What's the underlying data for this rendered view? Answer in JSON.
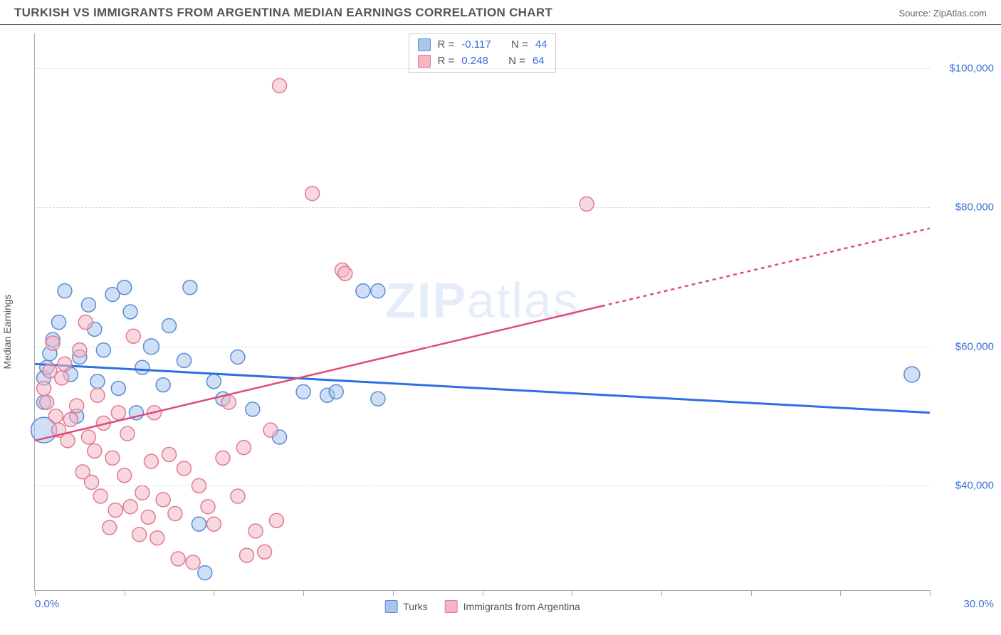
{
  "header": {
    "title": "TURKISH VS IMMIGRANTS FROM ARGENTINA MEDIAN EARNINGS CORRELATION CHART",
    "source": "Source: ZipAtlas.com"
  },
  "chart": {
    "type": "scatter",
    "ylabel": "Median Earnings",
    "watermark": {
      "bold": "ZIP",
      "thin": "atlas"
    },
    "xlim": [
      0,
      30
    ],
    "ylim": [
      25000,
      105000
    ],
    "x_tick_positions": [
      0,
      3,
      6,
      9,
      12,
      15,
      18,
      21,
      24,
      27,
      30
    ],
    "x_min_label": "0.0%",
    "x_max_label": "30.0%",
    "y_gridlines": [
      40000,
      60000,
      80000,
      100000
    ],
    "y_tick_labels": [
      "$40,000",
      "$60,000",
      "$80,000",
      "$100,000"
    ],
    "grid_color": "#dddddd",
    "axis_color": "#aaaaaa",
    "label_color": "#3b6fd8",
    "background_color": "#ffffff",
    "series": [
      {
        "name": "Turks",
        "fill": "#a8c5ec",
        "stroke": "#5a8bd6",
        "fill_opacity": 0.55,
        "marker_r": 10,
        "trend": {
          "y_at_xmin": 57500,
          "y_at_xmax": 50500,
          "solid_until_x": 30,
          "color": "#2f6fe0",
          "width": 3
        },
        "stats": {
          "R": "-0.117",
          "N": "44"
        },
        "points": [
          [
            0.3,
            48000,
            18
          ],
          [
            0.3,
            52000,
            10
          ],
          [
            0.3,
            55500,
            10
          ],
          [
            0.4,
            57000,
            10
          ],
          [
            0.5,
            59000,
            10
          ],
          [
            0.6,
            61000,
            10
          ],
          [
            0.8,
            63500,
            10
          ],
          [
            1.0,
            68000,
            10
          ],
          [
            1.2,
            56000,
            10
          ],
          [
            1.4,
            50000,
            10
          ],
          [
            1.5,
            58500,
            10
          ],
          [
            1.8,
            66000,
            10
          ],
          [
            2.0,
            62500,
            10
          ],
          [
            2.1,
            55000,
            10
          ],
          [
            2.3,
            59500,
            10
          ],
          [
            2.6,
            67500,
            10
          ],
          [
            2.8,
            54000,
            10
          ],
          [
            3.0,
            68500,
            10
          ],
          [
            3.2,
            65000,
            10
          ],
          [
            3.4,
            50500,
            10
          ],
          [
            3.6,
            57000,
            10
          ],
          [
            3.9,
            60000,
            11
          ],
          [
            4.3,
            54500,
            10
          ],
          [
            4.5,
            63000,
            10
          ],
          [
            5.0,
            58000,
            10
          ],
          [
            5.2,
            68500,
            10
          ],
          [
            5.5,
            34500,
            10
          ],
          [
            5.7,
            27500,
            10
          ],
          [
            6.0,
            55000,
            10
          ],
          [
            6.3,
            52500,
            10
          ],
          [
            6.8,
            58500,
            10
          ],
          [
            7.3,
            51000,
            10
          ],
          [
            8.2,
            47000,
            10
          ],
          [
            9.0,
            53500,
            10
          ],
          [
            9.8,
            53000,
            10
          ],
          [
            10.1,
            53500,
            10
          ],
          [
            11.5,
            52500,
            10
          ],
          [
            11.0,
            68000,
            10
          ],
          [
            11.5,
            68000,
            10
          ],
          [
            29.4,
            56000,
            11
          ]
        ]
      },
      {
        "name": "Immigrants from Argentina",
        "fill": "#f4b6c2",
        "stroke": "#e17a94",
        "fill_opacity": 0.55,
        "marker_r": 10,
        "trend": {
          "y_at_xmin": 46500,
          "y_at_xmax": 77000,
          "solid_until_x": 19,
          "color": "#e04a7a",
          "width": 2.5
        },
        "stats": {
          "R": "0.248",
          "N": "64"
        },
        "points": [
          [
            0.3,
            54000,
            10
          ],
          [
            0.4,
            52000,
            10
          ],
          [
            0.5,
            56500,
            10
          ],
          [
            0.6,
            60500,
            10
          ],
          [
            0.7,
            50000,
            10
          ],
          [
            0.8,
            48000,
            10
          ],
          [
            0.9,
            55500,
            10
          ],
          [
            1.0,
            57500,
            10
          ],
          [
            1.1,
            46500,
            10
          ],
          [
            1.2,
            49500,
            10
          ],
          [
            1.4,
            51500,
            10
          ],
          [
            1.5,
            59500,
            10
          ],
          [
            1.6,
            42000,
            10
          ],
          [
            1.7,
            63500,
            10
          ],
          [
            1.8,
            47000,
            10
          ],
          [
            1.9,
            40500,
            10
          ],
          [
            2.0,
            45000,
            10
          ],
          [
            2.1,
            53000,
            10
          ],
          [
            2.2,
            38500,
            10
          ],
          [
            2.3,
            49000,
            10
          ],
          [
            2.5,
            34000,
            10
          ],
          [
            2.6,
            44000,
            10
          ],
          [
            2.7,
            36500,
            10
          ],
          [
            2.8,
            50500,
            10
          ],
          [
            3.0,
            41500,
            10
          ],
          [
            3.1,
            47500,
            10
          ],
          [
            3.2,
            37000,
            10
          ],
          [
            3.3,
            61500,
            10
          ],
          [
            3.5,
            33000,
            10
          ],
          [
            3.6,
            39000,
            10
          ],
          [
            3.8,
            35500,
            10
          ],
          [
            3.9,
            43500,
            10
          ],
          [
            4.0,
            50500,
            10
          ],
          [
            4.1,
            32500,
            10
          ],
          [
            4.3,
            38000,
            10
          ],
          [
            4.5,
            44500,
            10
          ],
          [
            4.7,
            36000,
            10
          ],
          [
            4.8,
            29500,
            10
          ],
          [
            5.0,
            42500,
            10
          ],
          [
            5.3,
            29000,
            10
          ],
          [
            5.5,
            40000,
            10
          ],
          [
            5.8,
            37000,
            10
          ],
          [
            6.0,
            34500,
            10
          ],
          [
            6.3,
            44000,
            10
          ],
          [
            6.5,
            52000,
            10
          ],
          [
            6.8,
            38500,
            10
          ],
          [
            7.0,
            45500,
            10
          ],
          [
            7.1,
            30000,
            10
          ],
          [
            7.4,
            33500,
            10
          ],
          [
            7.7,
            30500,
            10
          ],
          [
            7.9,
            48000,
            10
          ],
          [
            8.2,
            97500,
            10
          ],
          [
            8.1,
            35000,
            10
          ],
          [
            9.3,
            82000,
            10
          ],
          [
            10.3,
            71000,
            10
          ],
          [
            10.4,
            70500,
            10
          ],
          [
            18.5,
            80500,
            10
          ]
        ]
      }
    ],
    "legend_labels": {
      "r": "R =",
      "n": "N ="
    }
  }
}
